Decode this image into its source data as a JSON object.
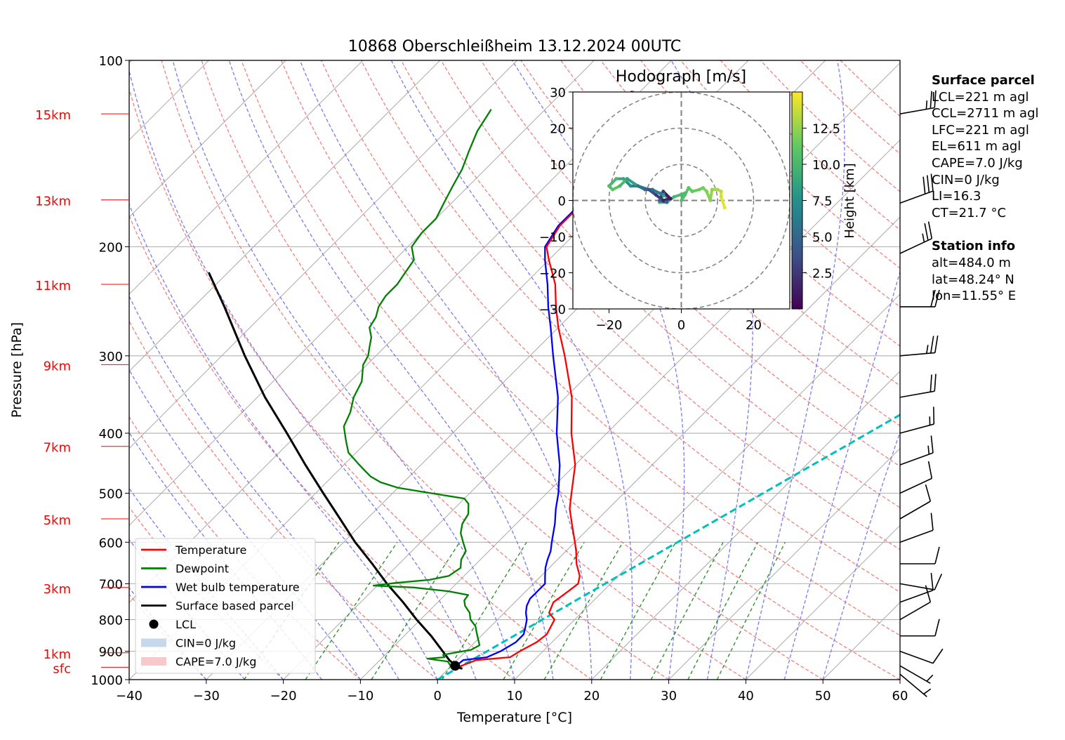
{
  "chart_data": {
    "type": "skew-t",
    "title": "10868 Oberschleißheim 13.12.2024 00UTC",
    "xlabel": "Temperature [°C]",
    "ylabel": "Pressure [hPa]",
    "xlim": [
      -40,
      60
    ],
    "ylim": [
      1000,
      100
    ],
    "x_ticks": [
      "−40",
      "−30",
      "−20",
      "−10",
      "0",
      "10",
      "20",
      "30",
      "40",
      "50",
      "60"
    ],
    "p_ticks": [
      {
        "p": 100,
        "label": "100"
      },
      {
        "p": 200,
        "label": "200"
      },
      {
        "p": 300,
        "label": "300"
      },
      {
        "p": 400,
        "label": "400"
      },
      {
        "p": 500,
        "label": "500"
      },
      {
        "p": 600,
        "label": "600"
      },
      {
        "p": 700,
        "label": "700"
      },
      {
        "p": 800,
        "label": "800"
      },
      {
        "p": 900,
        "label": "900"
      },
      {
        "p": 1000,
        "label": "1000"
      }
    ],
    "height_labels": [
      {
        "p": 955,
        "label": "sfc"
      },
      {
        "p": 905,
        "label": "1km"
      },
      {
        "p": 710,
        "label": "3km"
      },
      {
        "p": 550,
        "label": "5km"
      },
      {
        "p": 420,
        "label": "7km"
      },
      {
        "p": 310,
        "label": "9km"
      },
      {
        "p": 230,
        "label": "11km"
      },
      {
        "p": 168,
        "label": "13km"
      },
      {
        "p": 122,
        "label": "15km"
      }
    ],
    "grid": true,
    "legend": {
      "placement": "bottom-left",
      "entries": [
        {
          "label": "Temperature",
          "color": "#ff0000",
          "kind": "line"
        },
        {
          "label": "Dewpoint",
          "color": "#008000",
          "kind": "line"
        },
        {
          "label": "Wet bulb temperature",
          "color": "#0000ff",
          "kind": "line"
        },
        {
          "label": "Surface based parcel",
          "color": "#000000",
          "kind": "line"
        },
        {
          "label": "LCL",
          "color": "#000000",
          "kind": "dot"
        },
        {
          "label": "CIN=0 J/kg",
          "color": "#c6d9ec",
          "kind": "patch"
        },
        {
          "label": "CAPE=7.0 J/kg",
          "color": "#f7c9cc",
          "kind": "patch"
        }
      ]
    },
    "series": [
      {
        "name": "Temperature",
        "color": "#ff0000",
        "profile": [
          [
            955,
            1.0
          ],
          [
            930,
            2.5
          ],
          [
            920,
            6.5
          ],
          [
            900,
            7.0
          ],
          [
            870,
            8.0
          ],
          [
            845,
            8.3
          ],
          [
            820,
            7.8
          ],
          [
            800,
            7.4
          ],
          [
            780,
            5.8
          ],
          [
            750,
            5.0
          ],
          [
            720,
            5.5
          ],
          [
            700,
            5.8
          ],
          [
            680,
            5.0
          ],
          [
            650,
            3.0
          ],
          [
            620,
            1.3
          ],
          [
            600,
            0.0
          ],
          [
            560,
            -2.8
          ],
          [
            530,
            -5.0
          ],
          [
            500,
            -6.8
          ],
          [
            450,
            -10.0
          ],
          [
            400,
            -14.6
          ],
          [
            350,
            -19.2
          ],
          [
            300,
            -25.5
          ],
          [
            270,
            -30.0
          ],
          [
            250,
            -33.0
          ],
          [
            230,
            -36.0
          ],
          [
            210,
            -40.0
          ],
          [
            200,
            -42.0
          ],
          [
            185,
            -43.0
          ],
          [
            175,
            -43.0
          ],
          [
            170,
            -42.5
          ],
          [
            165,
            -43.5
          ],
          [
            150,
            -45.0
          ],
          [
            140,
            -46.0
          ],
          [
            130,
            -47.0
          ],
          [
            120,
            -49.0
          ],
          [
            112,
            -51.0
          ]
        ]
      },
      {
        "name": "Dewpoint",
        "color": "#008000",
        "profile": [
          [
            955,
            0.2
          ],
          [
            935,
            -1.0
          ],
          [
            925,
            -4.0
          ],
          [
            920,
            -2.0
          ],
          [
            912,
            -2.5
          ],
          [
            905,
            -1.3
          ],
          [
            895,
            0.5
          ],
          [
            880,
            1.0
          ],
          [
            860,
            0.0
          ],
          [
            840,
            -1.0
          ],
          [
            820,
            -2.0
          ],
          [
            800,
            -3.5
          ],
          [
            780,
            -4.5
          ],
          [
            760,
            -6.0
          ],
          [
            745,
            -6.8
          ],
          [
            730,
            -7.0
          ],
          [
            720,
            -10.0
          ],
          [
            710,
            -15.0
          ],
          [
            705,
            -20.5
          ],
          [
            698,
            -18.0
          ],
          [
            690,
            -14.0
          ],
          [
            680,
            -12.0
          ],
          [
            660,
            -11.5
          ],
          [
            640,
            -12.5
          ],
          [
            620,
            -13.0
          ],
          [
            600,
            -14.5
          ],
          [
            580,
            -16.0
          ],
          [
            560,
            -17.0
          ],
          [
            540,
            -17.5
          ],
          [
            520,
            -18.8
          ],
          [
            510,
            -20.0
          ],
          [
            500,
            -25.0
          ],
          [
            490,
            -30.0
          ],
          [
            480,
            -33.0
          ],
          [
            470,
            -35.0
          ],
          [
            460,
            -36.5
          ],
          [
            450,
            -38.0
          ],
          [
            430,
            -41.0
          ],
          [
            410,
            -43.0
          ],
          [
            390,
            -45.0
          ],
          [
            370,
            -46.0
          ],
          [
            350,
            -47.5
          ],
          [
            330,
            -48.5
          ],
          [
            310,
            -50.5
          ],
          [
            300,
            -51.0
          ],
          [
            290,
            -52.0
          ],
          [
            280,
            -53.0
          ],
          [
            270,
            -54.5
          ],
          [
            260,
            -55.0
          ],
          [
            250,
            -56.0
          ],
          [
            240,
            -56.5
          ],
          [
            230,
            -56.5
          ],
          [
            220,
            -57.0
          ],
          [
            210,
            -57.5
          ],
          [
            200,
            -59.5
          ],
          [
            190,
            -60.0
          ],
          [
            180,
            -60.0
          ],
          [
            170,
            -61.0
          ],
          [
            160,
            -62.0
          ],
          [
            150,
            -63.0
          ],
          [
            140,
            -64.5
          ],
          [
            130,
            -66.0
          ],
          [
            125,
            -66.5
          ],
          [
            120,
            -67.0
          ]
        ]
      },
      {
        "name": "Wet bulb temperature",
        "color": "#0000ff",
        "profile": [
          [
            955,
            0.6
          ],
          [
            930,
            0.8
          ],
          [
            920,
            3.5
          ],
          [
            900,
            4.5
          ],
          [
            870,
            5.3
          ],
          [
            845,
            5.3
          ],
          [
            820,
            4.5
          ],
          [
            800,
            3.8
          ],
          [
            780,
            2.8
          ],
          [
            760,
            2.0
          ],
          [
            740,
            1.5
          ],
          [
            720,
            1.5
          ],
          [
            700,
            1.5
          ],
          [
            680,
            0.5
          ],
          [
            660,
            -0.5
          ],
          [
            640,
            -1.3
          ],
          [
            620,
            -2.0
          ],
          [
            600,
            -3.0
          ],
          [
            560,
            -5.0
          ],
          [
            530,
            -6.8
          ],
          [
            500,
            -8.5
          ],
          [
            450,
            -12.0
          ],
          [
            400,
            -16.5
          ],
          [
            350,
            -21.0
          ],
          [
            300,
            -27.0
          ],
          [
            270,
            -31.0
          ],
          [
            250,
            -34.0
          ],
          [
            230,
            -37.0
          ],
          [
            210,
            -40.5
          ],
          [
            200,
            -42.2
          ],
          [
            185,
            -43.2
          ],
          [
            175,
            -43.2
          ],
          [
            170,
            -42.7
          ],
          [
            165,
            -43.7
          ],
          [
            150,
            -45.2
          ],
          [
            140,
            -46.2
          ],
          [
            130,
            -47.2
          ],
          [
            120,
            -49.2
          ],
          [
            112,
            -51.2
          ]
        ]
      },
      {
        "name": "Surface based parcel",
        "color": "#000000",
        "profile": [
          [
            960,
            1.8
          ],
          [
            955,
            1.0
          ],
          [
            930,
            -1.0
          ],
          [
            900,
            -3.0
          ],
          [
            850,
            -6.5
          ],
          [
            800,
            -10.5
          ],
          [
            750,
            -14.5
          ],
          [
            700,
            -19.0
          ],
          [
            650,
            -23.5
          ],
          [
            600,
            -28.5
          ],
          [
            550,
            -33.5
          ],
          [
            500,
            -39.0
          ],
          [
            450,
            -45.0
          ],
          [
            400,
            -51.5
          ],
          [
            350,
            -59.0
          ],
          [
            300,
            -67.0
          ],
          [
            250,
            -76.0
          ],
          [
            220,
            -82.5
          ]
        ]
      }
    ],
    "lcl": {
      "p": 950,
      "t": 0.5
    },
    "cyan_line": [
      [
        1000,
        0.0
      ],
      [
        100,
        60.0
      ]
    ],
    "wind_profile": [
      {
        "p": 122,
        "speed": 24,
        "dir": 260
      },
      {
        "p": 170,
        "speed": 29,
        "dir": 250
      },
      {
        "p": 205,
        "speed": 25,
        "dir": 245
      },
      {
        "p": 250,
        "speed": 19,
        "dir": 270
      },
      {
        "p": 300,
        "speed": 24,
        "dir": 265
      },
      {
        "p": 350,
        "speed": 18,
        "dir": 260
      },
      {
        "p": 400,
        "speed": 15,
        "dir": 255
      },
      {
        "p": 450,
        "speed": 13,
        "dir": 250
      },
      {
        "p": 500,
        "speed": 11,
        "dir": 245
      },
      {
        "p": 550,
        "speed": 8,
        "dir": 240
      },
      {
        "p": 600,
        "speed": 9,
        "dir": 250
      },
      {
        "p": 650,
        "speed": 10,
        "dir": 270
      },
      {
        "p": 700,
        "speed": 9,
        "dir": 280
      },
      {
        "p": 750,
        "speed": 9,
        "dir": 250
      },
      {
        "p": 800,
        "speed": 9,
        "dir": 240
      },
      {
        "p": 850,
        "speed": 10,
        "dir": 270
      },
      {
        "p": 900,
        "speed": 9,
        "dir": 290
      },
      {
        "p": 950,
        "speed": 6,
        "dir": 300
      },
      {
        "p": 980,
        "speed": 4,
        "dir": 310
      }
    ],
    "hodograph": {
      "title": "Hodograph [m/s]",
      "xlim": [
        -30,
        30
      ],
      "ylim": [
        -30,
        30
      ],
      "x_ticks": [
        "−20",
        "0",
        "20"
      ],
      "y_ticks": [
        "30",
        "20",
        "10",
        "0",
        "−10",
        "−20",
        "−30"
      ],
      "rings": [
        10,
        20,
        30
      ],
      "colorbar_label": "Height [km]",
      "colorbar_ticks": [
        "2.5",
        "5.0",
        "7.5",
        "10.0",
        "12.5"
      ],
      "colorbar_range": [
        0,
        15
      ],
      "colormap": "viridis",
      "points": [
        {
          "u": 12,
          "v": -2,
          "h": 14.5
        },
        {
          "u": 11,
          "v": 1,
          "h": 14.0
        },
        {
          "u": 11,
          "v": 2.5,
          "h": 13.5
        },
        {
          "u": 10,
          "v": 3,
          "h": 13.0
        },
        {
          "u": 8.5,
          "v": 3,
          "h": 12.5
        },
        {
          "u": 8,
          "v": 0,
          "h": 12.2
        },
        {
          "u": 7,
          "v": 2.5,
          "h": 12.0
        },
        {
          "u": 6,
          "v": 3.5,
          "h": 11.7
        },
        {
          "u": 5,
          "v": 3.0,
          "h": 11.5
        },
        {
          "u": 3,
          "v": 2.5,
          "h": 11.2
        },
        {
          "u": 2,
          "v": 3.5,
          "h": 11.0
        },
        {
          "u": 1,
          "v": 1.5,
          "h": 10.8
        },
        {
          "u": 0,
          "v": 0,
          "h": 10.5
        },
        {
          "u": 1,
          "v": 2,
          "h": 10.2
        },
        {
          "u": -2,
          "v": 1,
          "h": 9.8
        },
        {
          "u": -4,
          "v": -0.5,
          "h": 9.5
        },
        {
          "u": -6,
          "v": -0.5,
          "h": 9.3
        },
        {
          "u": -5,
          "v": 1.5,
          "h": 9.0
        },
        {
          "u": -3,
          "v": 0.5,
          "h": 8.5
        },
        {
          "u": -5,
          "v": 2,
          "h": 7.5
        },
        {
          "u": -6,
          "v": 2,
          "h": 6.5
        },
        {
          "u": -8,
          "v": 3,
          "h": 5.5
        },
        {
          "u": -10,
          "v": 3,
          "h": 5.0
        },
        {
          "u": -12,
          "v": 4,
          "h": 6.0
        },
        {
          "u": -14,
          "v": 4,
          "h": 7.5
        },
        {
          "u": -16,
          "v": 6,
          "h": 9.0
        },
        {
          "u": -18,
          "v": 6,
          "h": 10.0
        },
        {
          "u": -20,
          "v": 4,
          "h": 10.5
        },
        {
          "u": -19,
          "v": 3,
          "h": 11.0
        },
        {
          "u": -17,
          "v": 4,
          "h": 10.0
        },
        {
          "u": -15,
          "v": 6,
          "h": 8.5
        },
        {
          "u": -12,
          "v": 4,
          "h": 6.0
        },
        {
          "u": -9,
          "v": 3,
          "h": 3.5
        },
        {
          "u": -7,
          "v": 1.5,
          "h": 2.5
        },
        {
          "u": -5,
          "v": 0,
          "h": 1.5
        },
        {
          "u": -3,
          "v": 0.5,
          "h": 1.0
        },
        {
          "u": -5,
          "v": 2.5,
          "h": 2.5
        },
        {
          "u": -6,
          "v": 0,
          "h": 4.5
        },
        {
          "u": -4,
          "v": -0.5,
          "h": 5.0
        }
      ]
    },
    "surface_parcel": {
      "heading": "Surface parcel",
      "lines": [
        "LCL=221 m agl",
        "CCL=2711 m agl",
        "LFC=221 m agl",
        "EL=611 m agl",
        "CAPE=7.0 J/kg",
        "CIN=0 J/kg",
        "LI=16.3",
        "CT=21.7 °C"
      ]
    },
    "station_info": {
      "heading": "Station info",
      "lines": [
        "alt=484.0 m",
        "lat=48.24° N",
        "lon=11.55° E"
      ]
    }
  }
}
